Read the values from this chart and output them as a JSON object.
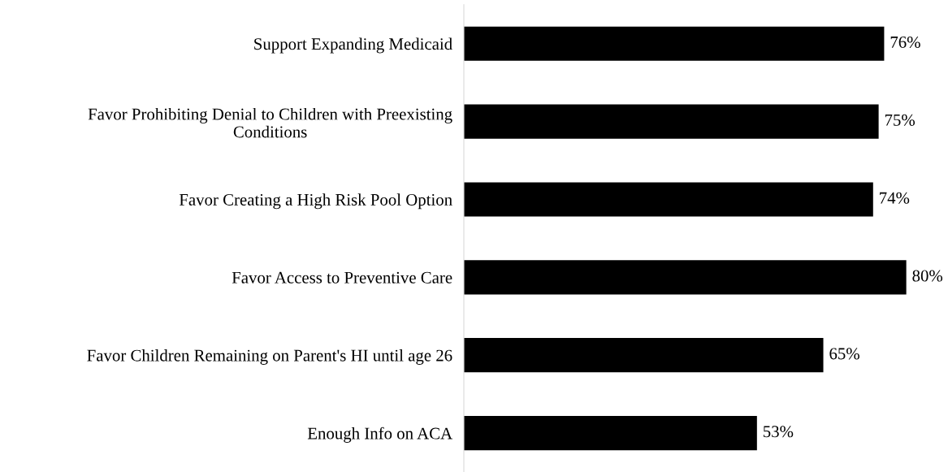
{
  "chart_data": {
    "type": "bar",
    "orientation": "horizontal",
    "categories": [
      "Support Expanding Medicaid",
      "Favor Prohibiting Denial to Children with Preexisting\nConditions",
      "Favor Creating a High Risk Pool Option",
      "Favor Access to Preventive Care",
      "Favor Children Remaining on Parent's HI until age 26",
      "Enough Info on ACA"
    ],
    "values": [
      76,
      75,
      74,
      80,
      65,
      53
    ],
    "value_labels": [
      "76%",
      "75%",
      "74%",
      "80%",
      "65%",
      "53%"
    ],
    "color": "#000000"
  }
}
